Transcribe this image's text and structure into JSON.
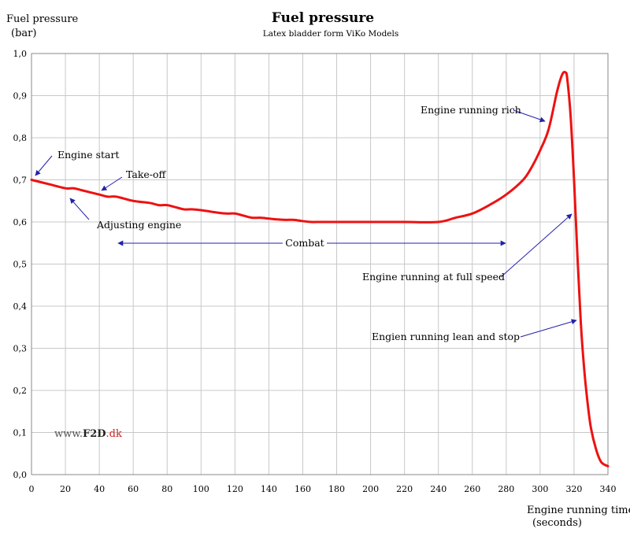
{
  "chart_data": {
    "type": "line",
    "title": "Fuel pressure",
    "subtitle": "Latex bladder form ViKo Models",
    "ylabel_line1": "Fuel pressure",
    "ylabel_line2": "(bar)",
    "xlabel_line1": "Engine running time",
    "xlabel_line2": "(seconds)",
    "xlim": [
      0,
      340
    ],
    "ylim": [
      0,
      1
    ],
    "x_ticks": [
      "0",
      "20",
      "40",
      "60",
      "80",
      "100",
      "120",
      "140",
      "160",
      "180",
      "200",
      "220",
      "240",
      "260",
      "280",
      "300",
      "320",
      "340"
    ],
    "y_ticks": [
      "0,0",
      "0,1",
      "0,2",
      "0,3",
      "0,4",
      "0,5",
      "0,6",
      "0,7",
      "0,8",
      "0,9",
      "1,0"
    ],
    "grid": true,
    "series": [
      {
        "color": "#ee1111",
        "x": [
          0,
          10,
          20,
          25,
          30,
          40,
          45,
          50,
          60,
          70,
          75,
          80,
          85,
          90,
          95,
          100,
          110,
          115,
          120,
          125,
          130,
          135,
          140,
          145,
          150,
          155,
          160,
          165,
          170,
          180,
          200,
          220,
          240,
          250,
          260,
          270,
          280,
          290,
          295,
          300,
          305,
          310,
          313,
          315,
          316,
          318,
          320,
          322,
          324,
          326,
          328,
          330,
          333,
          336,
          340
        ],
        "y": [
          0.7,
          0.69,
          0.68,
          0.68,
          0.675,
          0.665,
          0.66,
          0.66,
          0.65,
          0.645,
          0.64,
          0.64,
          0.635,
          0.63,
          0.63,
          0.628,
          0.622,
          0.62,
          0.62,
          0.615,
          0.61,
          0.61,
          0.608,
          0.606,
          0.605,
          0.605,
          0.602,
          0.6,
          0.6,
          0.6,
          0.6,
          0.6,
          0.6,
          0.61,
          0.62,
          0.64,
          0.665,
          0.7,
          0.73,
          0.77,
          0.82,
          0.91,
          0.95,
          0.955,
          0.94,
          0.85,
          0.7,
          0.52,
          0.36,
          0.25,
          0.17,
          0.11,
          0.06,
          0.03,
          0.02
        ]
      }
    ],
    "annotations": [
      {
        "text": "Engine start"
      },
      {
        "text": "Take-off"
      },
      {
        "text": "Adjusting engine"
      },
      {
        "text": "Combat"
      },
      {
        "text": "Engine running rich"
      },
      {
        "text": "Engine running at full speed"
      },
      {
        "text": "Engien running lean and stop"
      }
    ],
    "annotation_color": "#2222aa"
  },
  "watermark": {
    "prefix": "www.",
    "brand": "F2D",
    "suffix": ".dk",
    "brand_color": "#cc2222"
  }
}
